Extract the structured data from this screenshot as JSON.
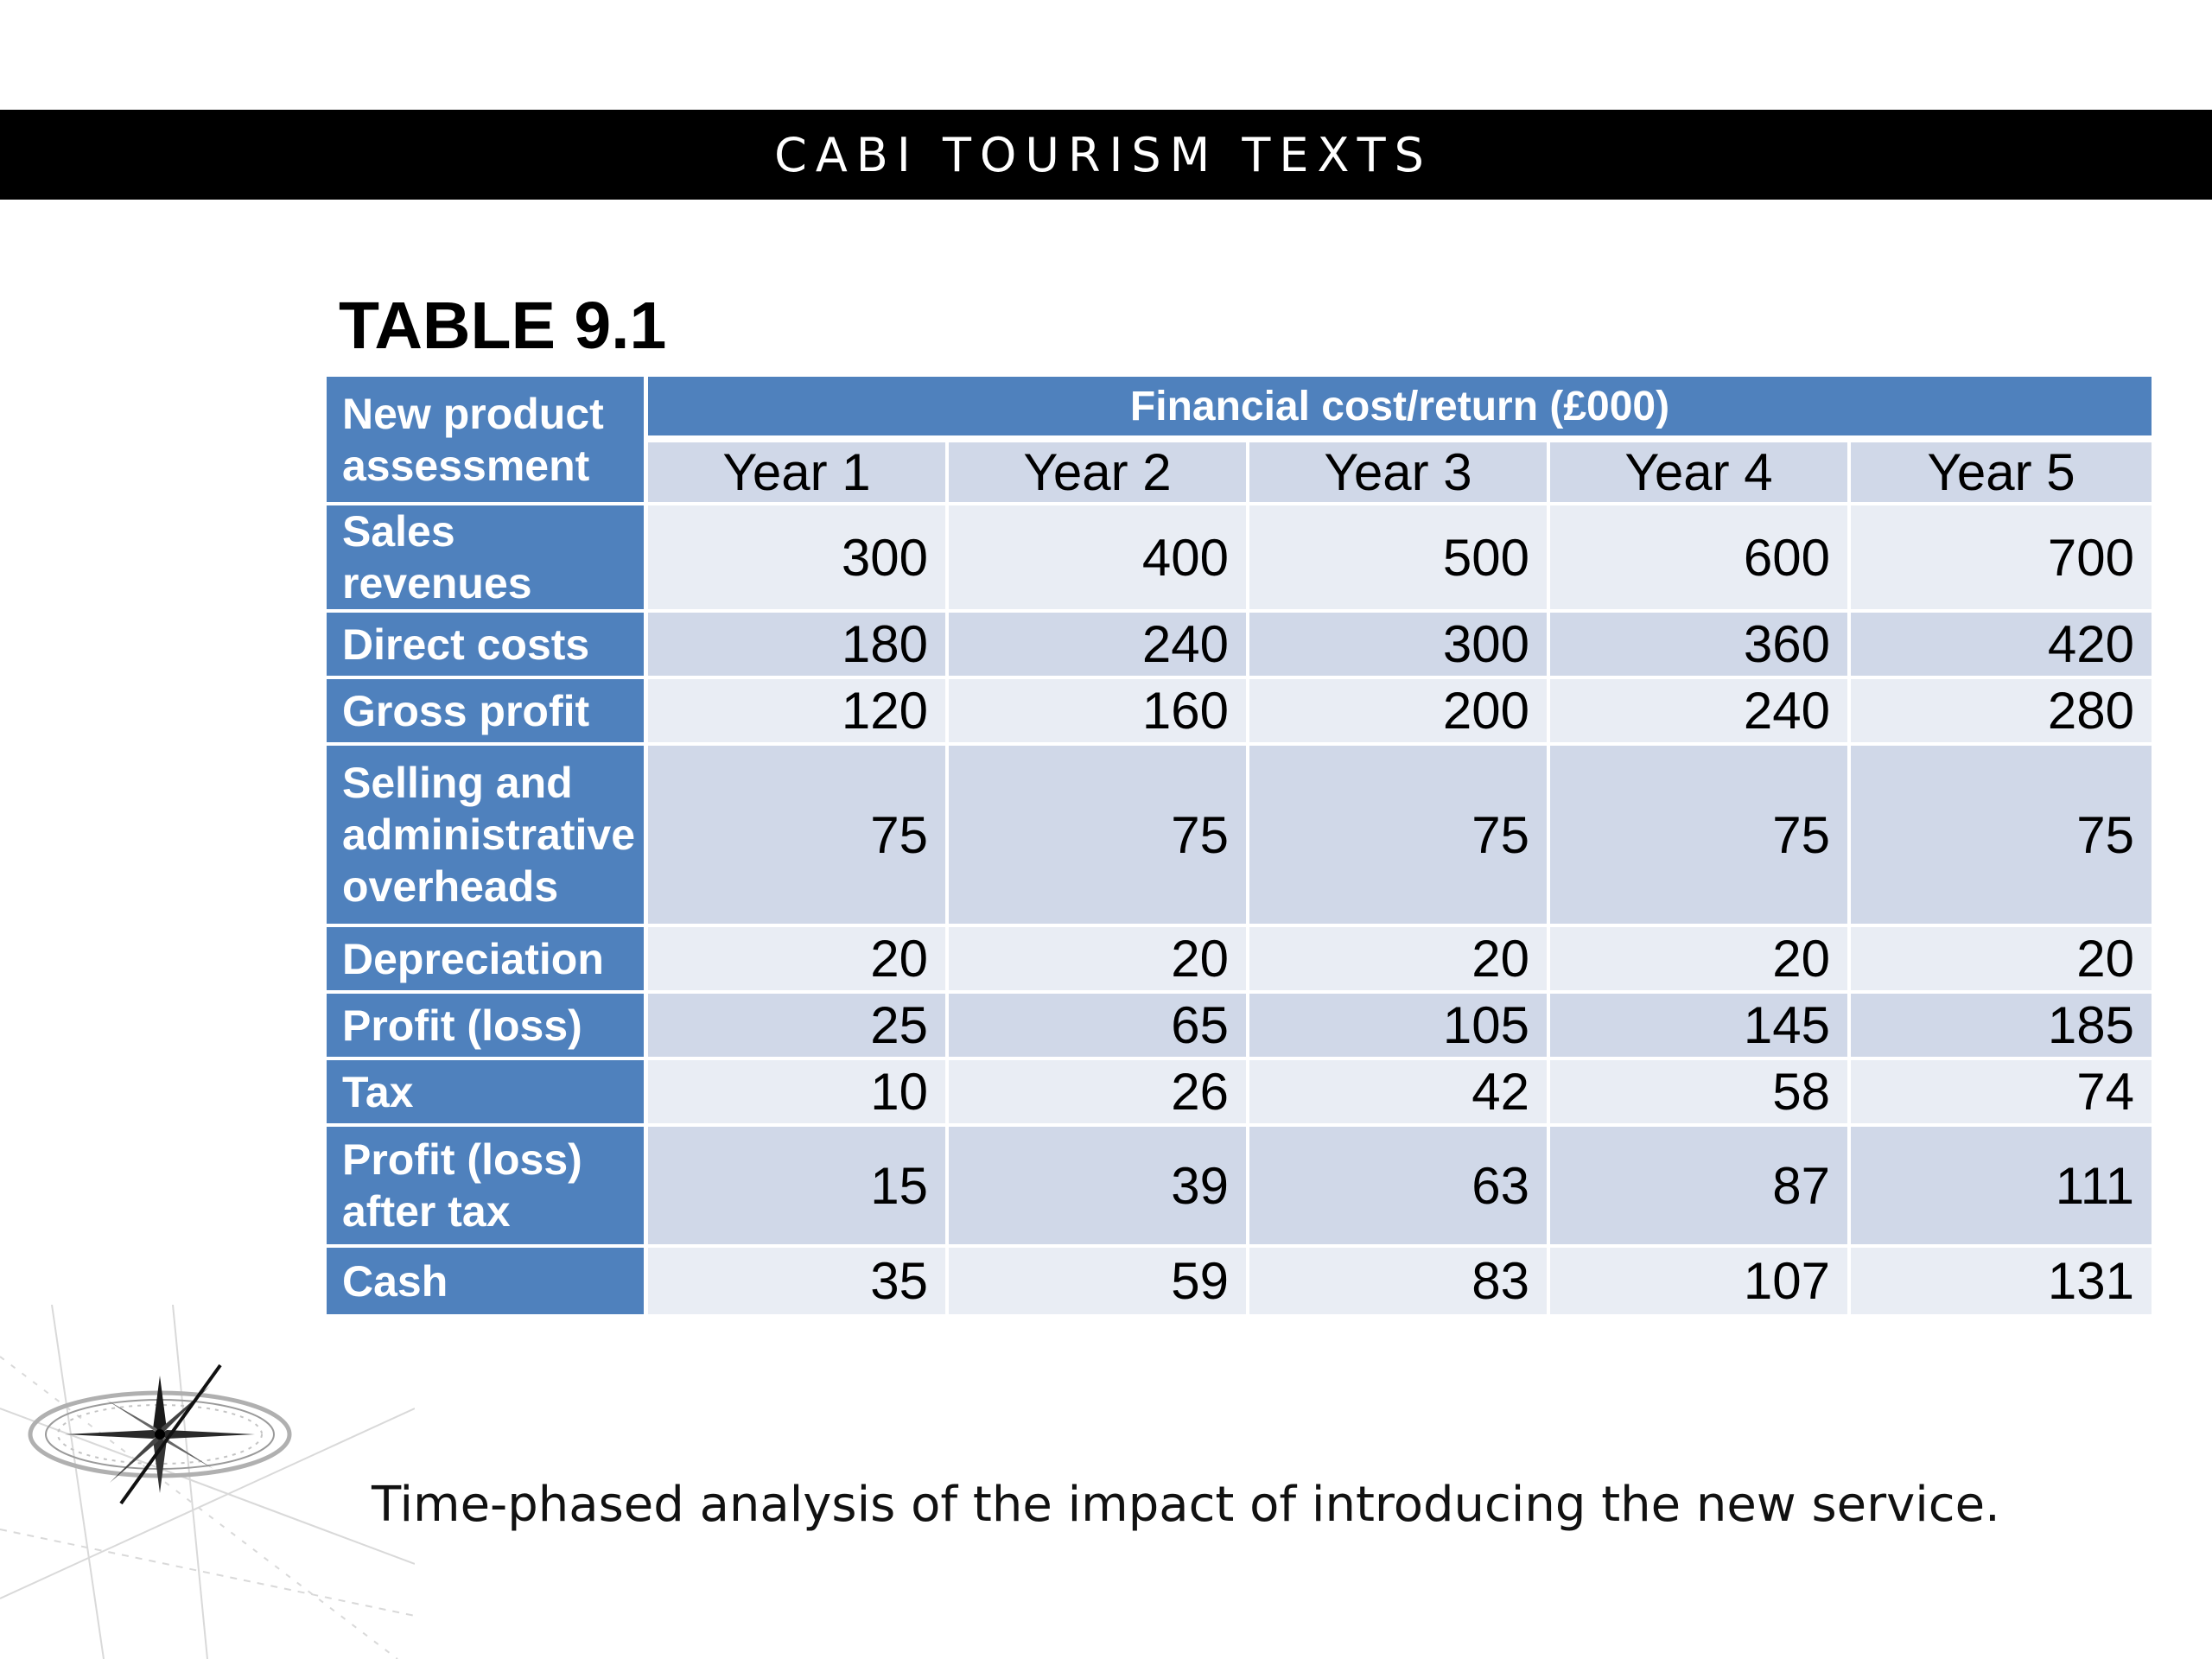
{
  "header": {
    "title": "CABI TOURISM TEXTS"
  },
  "table_label": "TABLE 9.1",
  "table": {
    "corner_label": "New product assessment",
    "group_label": "Financial cost/return (£000)",
    "columns": [
      "Year 1",
      "Year 2",
      "Year 3",
      "Year 4",
      "Year 5"
    ],
    "rows": [
      {
        "label": "Sales revenues",
        "values": [
          "300",
          "400",
          "500",
          "600",
          "700"
        ]
      },
      {
        "label": "Direct costs",
        "values": [
          "180",
          "240",
          "300",
          "360",
          "420"
        ]
      },
      {
        "label": "Gross profit",
        "values": [
          "120",
          "160",
          "200",
          "240",
          "280"
        ]
      },
      {
        "label": "Selling and administrative overheads",
        "values": [
          "75",
          "75",
          "75",
          "75",
          "75"
        ]
      },
      {
        "label": "Depreciation",
        "values": [
          "20",
          "20",
          "20",
          "20",
          "20"
        ]
      },
      {
        "label": "Profit (loss)",
        "values": [
          "25",
          "65",
          "105",
          "145",
          "185"
        ]
      },
      {
        "label": "Tax",
        "values": [
          "10",
          "26",
          "42",
          "58",
          "74"
        ]
      },
      {
        "label": "Profit (loss) after tax",
        "values": [
          "15",
          "39",
          "63",
          "87",
          "111"
        ]
      },
      {
        "label": "Cash",
        "values": [
          "35",
          "59",
          "83",
          "107",
          "131"
        ]
      }
    ]
  },
  "caption": "Time-phased analysis of the impact of introducing the new service.",
  "decoration": {
    "icon": "compass-rose-icon"
  },
  "colors": {
    "header_band": "#000000",
    "table_head": "#4f81bd",
    "row_light": "#e9edf4",
    "row_dark": "#d0d8e8"
  }
}
